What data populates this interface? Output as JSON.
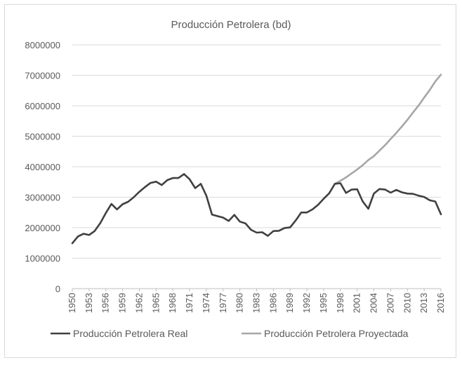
{
  "chart_data": {
    "type": "line",
    "title": "Producción Petrolera (bd)",
    "xlabel": "",
    "ylabel": "",
    "ylim": [
      0,
      8000000
    ],
    "yticks": [
      0,
      1000000,
      2000000,
      3000000,
      4000000,
      5000000,
      6000000,
      7000000,
      8000000
    ],
    "ytick_labels": [
      "0",
      "1000000",
      "2000000",
      "3000000",
      "4000000",
      "5000000",
      "6000000",
      "7000000",
      "8000000"
    ],
    "x": [
      1950,
      1951,
      1952,
      1953,
      1954,
      1955,
      1956,
      1957,
      1958,
      1959,
      1960,
      1961,
      1962,
      1963,
      1964,
      1965,
      1966,
      1967,
      1968,
      1969,
      1970,
      1971,
      1972,
      1973,
      1974,
      1975,
      1976,
      1977,
      1978,
      1979,
      1980,
      1981,
      1982,
      1983,
      1984,
      1985,
      1986,
      1987,
      1988,
      1989,
      1990,
      1991,
      1992,
      1993,
      1994,
      1995,
      1996,
      1997,
      1998,
      1999,
      2000,
      2001,
      2002,
      2003,
      2004,
      2005,
      2006,
      2007,
      2008,
      2009,
      2010,
      2011,
      2012,
      2013,
      2014,
      2015,
      2016
    ],
    "xtick_labels": [
      "1950",
      "1953",
      "1956",
      "1959",
      "1962",
      "1965",
      "1968",
      "1971",
      "1974",
      "1977",
      "1980",
      "1983",
      "1986",
      "1989",
      "1992",
      "1995",
      "1998",
      "2001",
      "2004",
      "2007",
      "2010",
      "2013",
      "2016"
    ],
    "xtick_values": [
      1950,
      1953,
      1956,
      1959,
      1962,
      1965,
      1968,
      1971,
      1974,
      1977,
      1980,
      1983,
      1986,
      1989,
      1992,
      1995,
      1998,
      2001,
      2004,
      2007,
      2010,
      2013,
      2016
    ],
    "grid": "horizontal",
    "legend_position": "bottom",
    "series": [
      {
        "name": "Producción Petrolera Real",
        "color": "#404040",
        "values": [
          1490000,
          1710000,
          1800000,
          1760000,
          1890000,
          2150000,
          2480000,
          2780000,
          2600000,
          2770000,
          2850000,
          3000000,
          3180000,
          3330000,
          3470000,
          3510000,
          3400000,
          3560000,
          3630000,
          3630000,
          3760000,
          3590000,
          3300000,
          3440000,
          3050000,
          2430000,
          2380000,
          2330000,
          2220000,
          2420000,
          2200000,
          2140000,
          1930000,
          1840000,
          1850000,
          1730000,
          1890000,
          1900000,
          1990000,
          2010000,
          2240000,
          2500000,
          2500000,
          2600000,
          2750000,
          2950000,
          3130000,
          3440000,
          3460000,
          3140000,
          3250000,
          3260000,
          2860000,
          2620000,
          3120000,
          3270000,
          3250000,
          3150000,
          3240000,
          3160000,
          3120000,
          3110000,
          3050000,
          3010000,
          2900000,
          2860000,
          2440000
        ]
      },
      {
        "name": "Producción Petrolera Proyectada",
        "color": "#a6a6a6",
        "x": [
          1997,
          1998,
          1999,
          2000,
          2001,
          2002,
          2003,
          2004,
          2005,
          2006,
          2007,
          2008,
          2009,
          2010,
          2011,
          2012,
          2013,
          2014,
          2015,
          2016
        ],
        "values": [
          3440000,
          3540000,
          3650000,
          3780000,
          3910000,
          4050000,
          4220000,
          4350000,
          4530000,
          4710000,
          4910000,
          5110000,
          5320000,
          5540000,
          5780000,
          6010000,
          6270000,
          6520000,
          6800000,
          7020000
        ]
      }
    ]
  }
}
